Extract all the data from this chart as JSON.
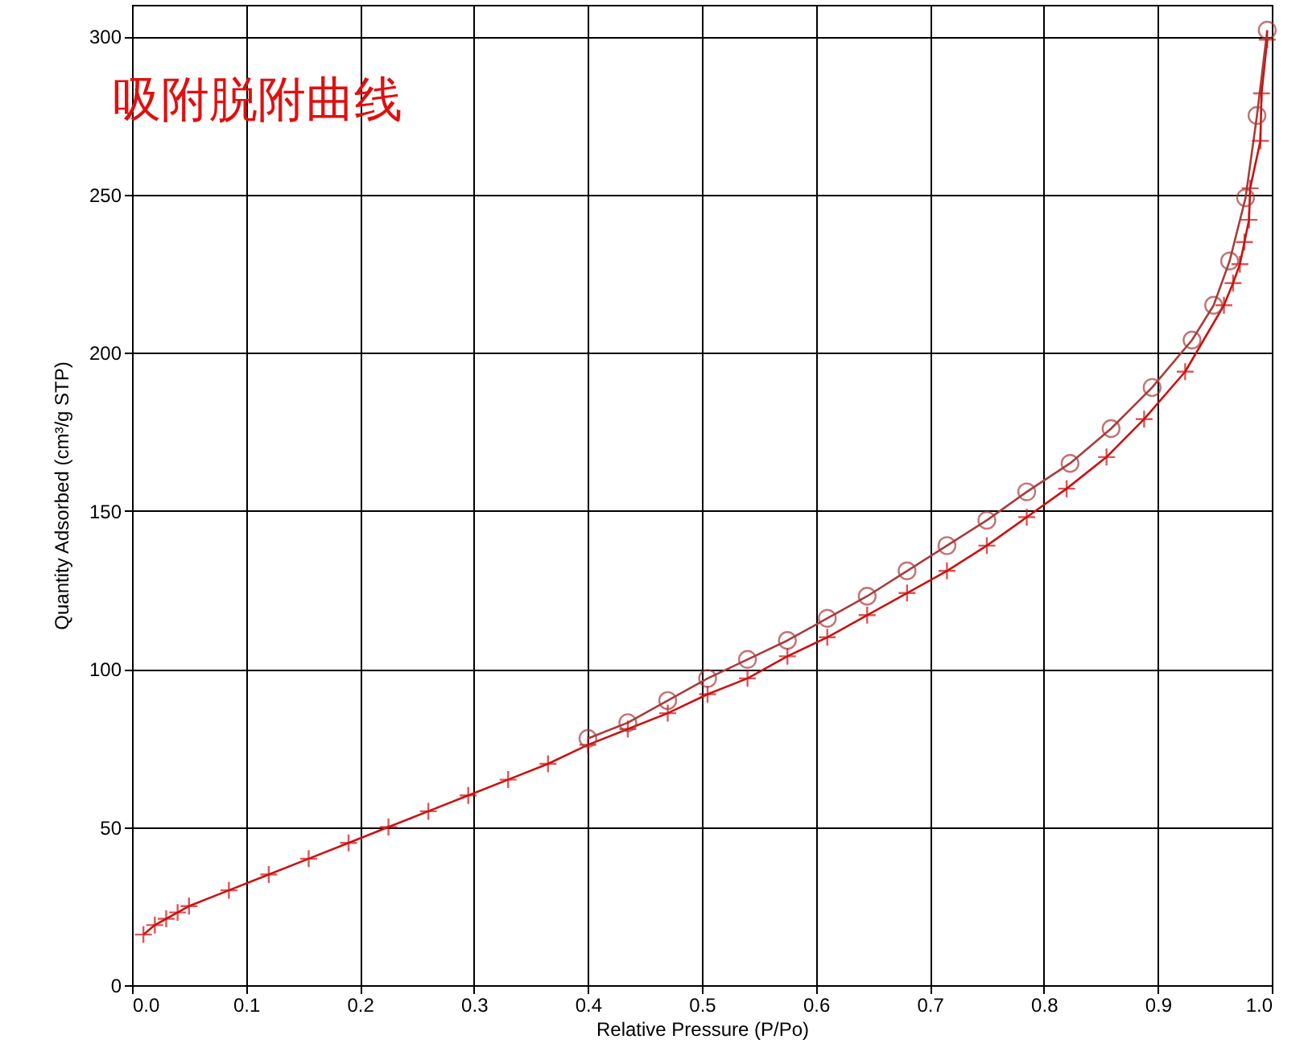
{
  "chart_data": {
    "type": "line",
    "title": "吸附脱附曲线",
    "xlabel": "Relative Pressure (P/Po)",
    "ylabel": "Quantity Adsorbed (cm³/g STP)",
    "xlim": [
      0,
      1
    ],
    "xticks": [
      {
        "value": 0,
        "label": "0.0"
      },
      0.1,
      0.2,
      0.3,
      0.4,
      0.5,
      0.6,
      0.7,
      0.8,
      0.9,
      {
        "value": 1,
        "label": "1.0"
      }
    ],
    "ylim": [
      0,
      310
    ],
    "yticks": [
      0,
      50,
      100,
      150,
      200,
      250,
      300
    ],
    "grid": true,
    "line_style": "solid",
    "series": [
      {
        "color": "#cc1111",
        "marker": "cross",
        "x": [
          0.01,
          0.02,
          0.03,
          0.04,
          0.05,
          0.085,
          0.12,
          0.155,
          0.19,
          0.225,
          0.26,
          0.295,
          0.33,
          0.365,
          0.4,
          0.435,
          0.47,
          0.505,
          0.54,
          0.575,
          0.61,
          0.645,
          0.68,
          0.715,
          0.75,
          0.785,
          0.82,
          0.855,
          0.888,
          0.924,
          0.958,
          0.966,
          0.972,
          0.976,
          0.98,
          0.981,
          0.99,
          0.991,
          0.996
        ],
        "values": [
          16,
          19,
          21,
          23,
          25,
          30,
          35,
          40,
          45,
          50,
          55,
          60,
          65,
          70,
          76,
          81,
          86,
          92,
          97,
          104,
          110,
          117,
          124,
          131,
          139,
          148,
          157,
          167,
          179,
          194,
          215,
          222,
          228,
          235,
          242,
          252,
          267,
          282,
          299
        ]
      },
      {
        "color": "#a83c3c",
        "marker": "circle",
        "x": [
          0.4,
          0.435,
          0.47,
          0.505,
          0.54,
          0.575,
          0.61,
          0.645,
          0.68,
          0.715,
          0.75,
          0.785,
          0.823,
          0.859,
          0.895,
          0.93,
          0.949,
          0.963,
          0.977,
          0.987,
          0.996
        ],
        "values": [
          78,
          83,
          90,
          97,
          103,
          109,
          116,
          123,
          131,
          139,
          147,
          156,
          165,
          176,
          189,
          204,
          215,
          229,
          249,
          275,
          302
        ]
      }
    ]
  }
}
